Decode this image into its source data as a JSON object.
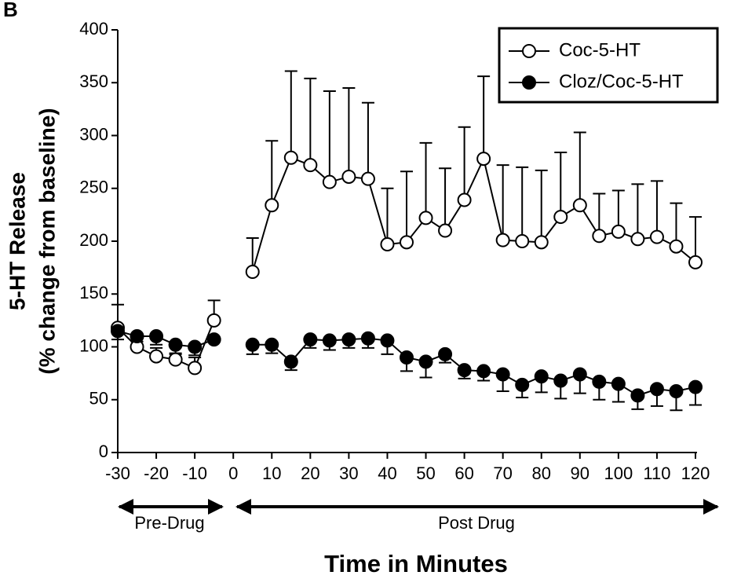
{
  "chart_data": {
    "type": "line",
    "panel_label": "B",
    "ylabel": [
      "5-HT Release",
      "(% change from baseline)"
    ],
    "xlabel": "Time in Minutes",
    "annotations": [
      "Pre-Drug",
      "Post Drug"
    ],
    "x": [
      -30,
      -25,
      -20,
      -15,
      -10,
      -5,
      0,
      5,
      10,
      15,
      20,
      25,
      30,
      35,
      40,
      45,
      50,
      55,
      60,
      65,
      70,
      75,
      80,
      85,
      90,
      95,
      100,
      105,
      110,
      115,
      120
    ],
    "series": [
      {
        "name": "Coc-5-HT",
        "color": "#ffffff",
        "error_direction": "up",
        "values": [
          118,
          100,
          91,
          88,
          80,
          125,
          null,
          171,
          234,
          279,
          272,
          256,
          261,
          259,
          197,
          199,
          222,
          210,
          239,
          278,
          201,
          200,
          199,
          223,
          234,
          205,
          209,
          202,
          204,
          195,
          180
        ],
        "errors": [
          22,
          5,
          8,
          5,
          10,
          19,
          null,
          32,
          61,
          82,
          82,
          86,
          84,
          72,
          53,
          67,
          71,
          59,
          69,
          78,
          71,
          70,
          68,
          61,
          69,
          40,
          39,
          52,
          53,
          41,
          43
        ]
      },
      {
        "name": "Cloz/Coc-5-HT",
        "color": "#000000",
        "error_direction": "down",
        "values": [
          115,
          110,
          110,
          102,
          100,
          107,
          null,
          102,
          102,
          86,
          107,
          106,
          107,
          108,
          106,
          90,
          86,
          93,
          78,
          77,
          74,
          64,
          72,
          68,
          74,
          67,
          65,
          54,
          60,
          58,
          62
        ],
        "errors": [
          8,
          8,
          8,
          8,
          8,
          0,
          null,
          9,
          8,
          8,
          8,
          9,
          8,
          9,
          13,
          13,
          15,
          8,
          8,
          9,
          16,
          12,
          15,
          17,
          18,
          17,
          17,
          13,
          16,
          18,
          17
        ]
      }
    ],
    "xlim": [
      -30,
      120
    ],
    "xticks": [
      -30,
      -20,
      -10,
      0,
      10,
      20,
      30,
      40,
      50,
      60,
      70,
      80,
      90,
      100,
      110,
      120
    ],
    "ylim": [
      0,
      400
    ],
    "yticks": [
      0,
      50,
      100,
      150,
      200,
      250,
      300,
      350,
      400
    ],
    "legend": "upper right"
  }
}
